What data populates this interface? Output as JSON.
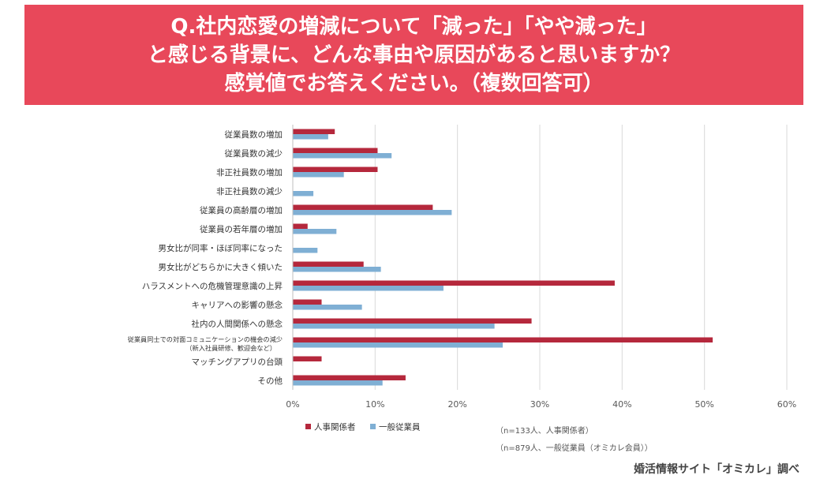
{
  "title_lines": [
    "Q.社内恋愛の増減について「減った」「やや減った」",
    "と感じる背景に、どんな事由や原因があると思いますか？",
    "感覚値でお答えください。（複数回答可）"
  ],
  "colors": {
    "banner": "#e8485a",
    "series_hr": "#b5283c",
    "series_emp": "#7fafd4",
    "grid": "#d9d9d9"
  },
  "notes": [
    "（n=133人、人事関係者）",
    "（n=879人、一般従業員（オミカレ会員））"
  ],
  "credit": "婚活情報サイト「オミカレ」調べ",
  "chart_data": {
    "type": "bar",
    "orientation": "horizontal",
    "categories": [
      [
        "従業員数の増加"
      ],
      [
        "従業員数の減少"
      ],
      [
        "非正社員数の増加"
      ],
      [
        "非正社員数の減少"
      ],
      [
        "従業員の高齢層の増加"
      ],
      [
        "従業員の若年層の増加"
      ],
      [
        "男女比が同率・ほぼ同率になった"
      ],
      [
        "男女比がどちらかに大きく傾いた"
      ],
      [
        "ハラスメントへの危機管理意識の上昇"
      ],
      [
        "キャリアへの影響の懸念"
      ],
      [
        "社内の人間関係への懸念"
      ],
      [
        "従業員同士での対面コミュニケーションの機会の減少",
        "（新入社員研修、歓迎会など）"
      ],
      [
        "マッチングアプリの台頭"
      ],
      [
        "その他"
      ]
    ],
    "series": [
      {
        "name": "人事関係者",
        "values": [
          5.1,
          10.3,
          10.3,
          0,
          17.0,
          1.8,
          0,
          8.6,
          39.1,
          3.5,
          29.0,
          51.0,
          3.5,
          13.7
        ]
      },
      {
        "name": "一般従業員",
        "values": [
          4.3,
          12.0,
          6.2,
          2.5,
          19.3,
          5.3,
          3.0,
          10.7,
          18.3,
          8.4,
          24.5,
          25.5,
          0,
          10.9
        ]
      }
    ],
    "xlim": [
      0,
      60
    ],
    "ticks": [
      0,
      10,
      20,
      30,
      40,
      50,
      60
    ],
    "tick_labels": [
      "0%",
      "10%",
      "20%",
      "30%",
      "40%",
      "50%",
      "60%"
    ],
    "legend_position": "bottom-left"
  }
}
